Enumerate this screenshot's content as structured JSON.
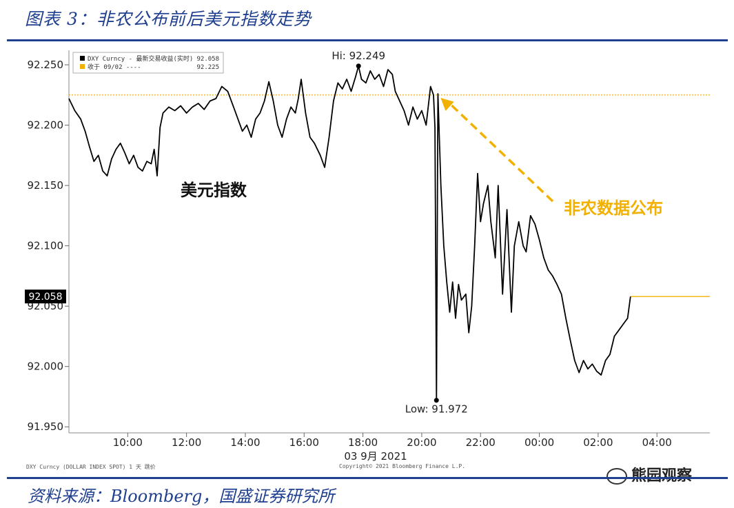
{
  "title": "图表 3：非农公布前后美元指数走势",
  "source": "资料来源：Bloomberg，国盛证券研究所",
  "footer_left": "DXY Curncy (DOLLAR INDEX SPOT) 1 天  跳价",
  "footer_mid": "Copyright© 2021 Bloomberg Finance L.P.",
  "watermark": "熊园观察",
  "colors": {
    "frame": "#1f3f8f",
    "series": "#000000",
    "ref": "#f2b100"
  },
  "chart_data": {
    "type": "line",
    "legend": [
      {
        "name": "DXY Curncy - 最新交易收益(实时)",
        "value": "92.058"
      },
      {
        "name": "收于 09/02 ----",
        "value": "92.225"
      }
    ],
    "ylim": [
      91.945,
      92.262
    ],
    "xlim": [
      8.0,
      29.8
    ],
    "y_ticks": [
      "92.250",
      "92.200",
      "92.150",
      "92.100",
      "92.050",
      "92.000",
      "91.950"
    ],
    "y_tick_values": [
      92.25,
      92.2,
      92.15,
      92.1,
      92.05,
      92.0,
      91.95
    ],
    "x_ticks": [
      "10:00",
      "12:00",
      "14:00",
      "16:00",
      "18:00",
      "20:00",
      "22:00",
      "00:00",
      "02:00",
      "04:00"
    ],
    "x_tick_values": [
      10,
      12,
      14,
      16,
      18,
      20,
      22,
      24,
      26,
      28
    ],
    "x_axis_date": "03 9月 2021",
    "last_price": "92.058",
    "last_value": 92.058,
    "reference_close": 92.225,
    "high": {
      "label": "Hi: 92.249",
      "x": 17.85,
      "y": 92.249
    },
    "low": {
      "label": "Low: 91.972",
      "x": 20.5,
      "y": 91.972
    },
    "series_label": "美元指数",
    "event_label": "非农数据公布",
    "event_point": {
      "x": 20.55,
      "y": 92.226
    },
    "series": [
      {
        "x": 8.0,
        "y": 92.222
      },
      {
        "x": 8.2,
        "y": 92.212
      },
      {
        "x": 8.4,
        "y": 92.205
      },
      {
        "x": 8.55,
        "y": 92.195
      },
      {
        "x": 8.7,
        "y": 92.182
      },
      {
        "x": 8.85,
        "y": 92.17
      },
      {
        "x": 9.0,
        "y": 92.175
      },
      {
        "x": 9.15,
        "y": 92.162
      },
      {
        "x": 9.3,
        "y": 92.158
      },
      {
        "x": 9.45,
        "y": 92.172
      },
      {
        "x": 9.6,
        "y": 92.18
      },
      {
        "x": 9.75,
        "y": 92.185
      },
      {
        "x": 9.9,
        "y": 92.177
      },
      {
        "x": 10.05,
        "y": 92.168
      },
      {
        "x": 10.2,
        "y": 92.175
      },
      {
        "x": 10.35,
        "y": 92.165
      },
      {
        "x": 10.5,
        "y": 92.162
      },
      {
        "x": 10.65,
        "y": 92.17
      },
      {
        "x": 10.8,
        "y": 92.168
      },
      {
        "x": 10.9,
        "y": 92.18
      },
      {
        "x": 11.0,
        "y": 92.158
      },
      {
        "x": 11.1,
        "y": 92.198
      },
      {
        "x": 11.2,
        "y": 92.21
      },
      {
        "x": 11.4,
        "y": 92.215
      },
      {
        "x": 11.6,
        "y": 92.212
      },
      {
        "x": 11.8,
        "y": 92.216
      },
      {
        "x": 12.0,
        "y": 92.21
      },
      {
        "x": 12.2,
        "y": 92.215
      },
      {
        "x": 12.4,
        "y": 92.218
      },
      {
        "x": 12.6,
        "y": 92.213
      },
      {
        "x": 12.8,
        "y": 92.22
      },
      {
        "x": 13.0,
        "y": 92.222
      },
      {
        "x": 13.2,
        "y": 92.232
      },
      {
        "x": 13.4,
        "y": 92.228
      },
      {
        "x": 13.6,
        "y": 92.215
      },
      {
        "x": 13.75,
        "y": 92.205
      },
      {
        "x": 13.9,
        "y": 92.195
      },
      {
        "x": 14.05,
        "y": 92.2
      },
      {
        "x": 14.2,
        "y": 92.19
      },
      {
        "x": 14.35,
        "y": 92.205
      },
      {
        "x": 14.5,
        "y": 92.21
      },
      {
        "x": 14.65,
        "y": 92.22
      },
      {
        "x": 14.8,
        "y": 92.236
      },
      {
        "x": 14.95,
        "y": 92.22
      },
      {
        "x": 15.1,
        "y": 92.2
      },
      {
        "x": 15.25,
        "y": 92.19
      },
      {
        "x": 15.4,
        "y": 92.205
      },
      {
        "x": 15.55,
        "y": 92.215
      },
      {
        "x": 15.7,
        "y": 92.21
      },
      {
        "x": 15.8,
        "y": 92.222
      },
      {
        "x": 15.9,
        "y": 92.238
      },
      {
        "x": 16.05,
        "y": 92.21
      },
      {
        "x": 16.2,
        "y": 92.19
      },
      {
        "x": 16.35,
        "y": 92.185
      },
      {
        "x": 16.55,
        "y": 92.175
      },
      {
        "x": 16.7,
        "y": 92.165
      },
      {
        "x": 16.85,
        "y": 92.19
      },
      {
        "x": 17.0,
        "y": 92.22
      },
      {
        "x": 17.15,
        "y": 92.235
      },
      {
        "x": 17.3,
        "y": 92.23
      },
      {
        "x": 17.45,
        "y": 92.238
      },
      {
        "x": 17.6,
        "y": 92.228
      },
      {
        "x": 17.75,
        "y": 92.24
      },
      {
        "x": 17.85,
        "y": 92.249
      },
      {
        "x": 17.95,
        "y": 92.238
      },
      {
        "x": 18.1,
        "y": 92.235
      },
      {
        "x": 18.25,
        "y": 92.245
      },
      {
        "x": 18.4,
        "y": 92.238
      },
      {
        "x": 18.55,
        "y": 92.242
      },
      {
        "x": 18.7,
        "y": 92.232
      },
      {
        "x": 18.85,
        "y": 92.246
      },
      {
        "x": 19.0,
        "y": 92.242
      },
      {
        "x": 19.1,
        "y": 92.228
      },
      {
        "x": 19.25,
        "y": 92.22
      },
      {
        "x": 19.4,
        "y": 92.212
      },
      {
        "x": 19.55,
        "y": 92.2
      },
      {
        "x": 19.7,
        "y": 92.215
      },
      {
        "x": 19.85,
        "y": 92.205
      },
      {
        "x": 20.0,
        "y": 92.212
      },
      {
        "x": 20.15,
        "y": 92.2
      },
      {
        "x": 20.3,
        "y": 92.232
      },
      {
        "x": 20.4,
        "y": 92.225
      },
      {
        "x": 20.45,
        "y": 92.198
      },
      {
        "x": 20.5,
        "y": 91.972
      },
      {
        "x": 20.55,
        "y": 92.226
      },
      {
        "x": 20.65,
        "y": 92.15
      },
      {
        "x": 20.75,
        "y": 92.1
      },
      {
        "x": 20.85,
        "y": 92.07
      },
      {
        "x": 20.95,
        "y": 92.045
      },
      {
        "x": 21.05,
        "y": 92.07
      },
      {
        "x": 21.15,
        "y": 92.04
      },
      {
        "x": 21.25,
        "y": 92.068
      },
      {
        "x": 21.35,
        "y": 92.055
      },
      {
        "x": 21.5,
        "y": 92.06
      },
      {
        "x": 21.6,
        "y": 92.028
      },
      {
        "x": 21.7,
        "y": 92.05
      },
      {
        "x": 21.8,
        "y": 92.1
      },
      {
        "x": 21.9,
        "y": 92.16
      },
      {
        "x": 22.0,
        "y": 92.12
      },
      {
        "x": 22.1,
        "y": 92.135
      },
      {
        "x": 22.25,
        "y": 92.15
      },
      {
        "x": 22.35,
        "y": 92.12
      },
      {
        "x": 22.5,
        "y": 92.09
      },
      {
        "x": 22.6,
        "y": 92.15
      },
      {
        "x": 22.75,
        "y": 92.06
      },
      {
        "x": 22.9,
        "y": 92.13
      },
      {
        "x": 23.05,
        "y": 92.045
      },
      {
        "x": 23.15,
        "y": 92.1
      },
      {
        "x": 23.3,
        "y": 92.12
      },
      {
        "x": 23.45,
        "y": 92.1
      },
      {
        "x": 23.55,
        "y": 92.095
      },
      {
        "x": 23.7,
        "y": 92.125
      },
      {
        "x": 23.85,
        "y": 92.118
      },
      {
        "x": 24.0,
        "y": 92.105
      },
      {
        "x": 24.15,
        "y": 92.09
      },
      {
        "x": 24.3,
        "y": 92.08
      },
      {
        "x": 24.45,
        "y": 92.075
      },
      {
        "x": 24.6,
        "y": 92.068
      },
      {
        "x": 24.75,
        "y": 92.06
      },
      {
        "x": 24.9,
        "y": 92.04
      },
      {
        "x": 25.05,
        "y": 92.022
      },
      {
        "x": 25.2,
        "y": 92.005
      },
      {
        "x": 25.35,
        "y": 91.995
      },
      {
        "x": 25.5,
        "y": 92.005
      },
      {
        "x": 25.65,
        "y": 91.998
      },
      {
        "x": 25.8,
        "y": 92.002
      },
      {
        "x": 25.95,
        "y": 91.996
      },
      {
        "x": 26.1,
        "y": 91.993
      },
      {
        "x": 26.25,
        "y": 92.005
      },
      {
        "x": 26.4,
        "y": 92.01
      },
      {
        "x": 26.55,
        "y": 92.025
      },
      {
        "x": 26.7,
        "y": 92.03
      },
      {
        "x": 26.85,
        "y": 92.035
      },
      {
        "x": 27.0,
        "y": 92.04
      },
      {
        "x": 27.1,
        "y": 92.058
      }
    ]
  }
}
